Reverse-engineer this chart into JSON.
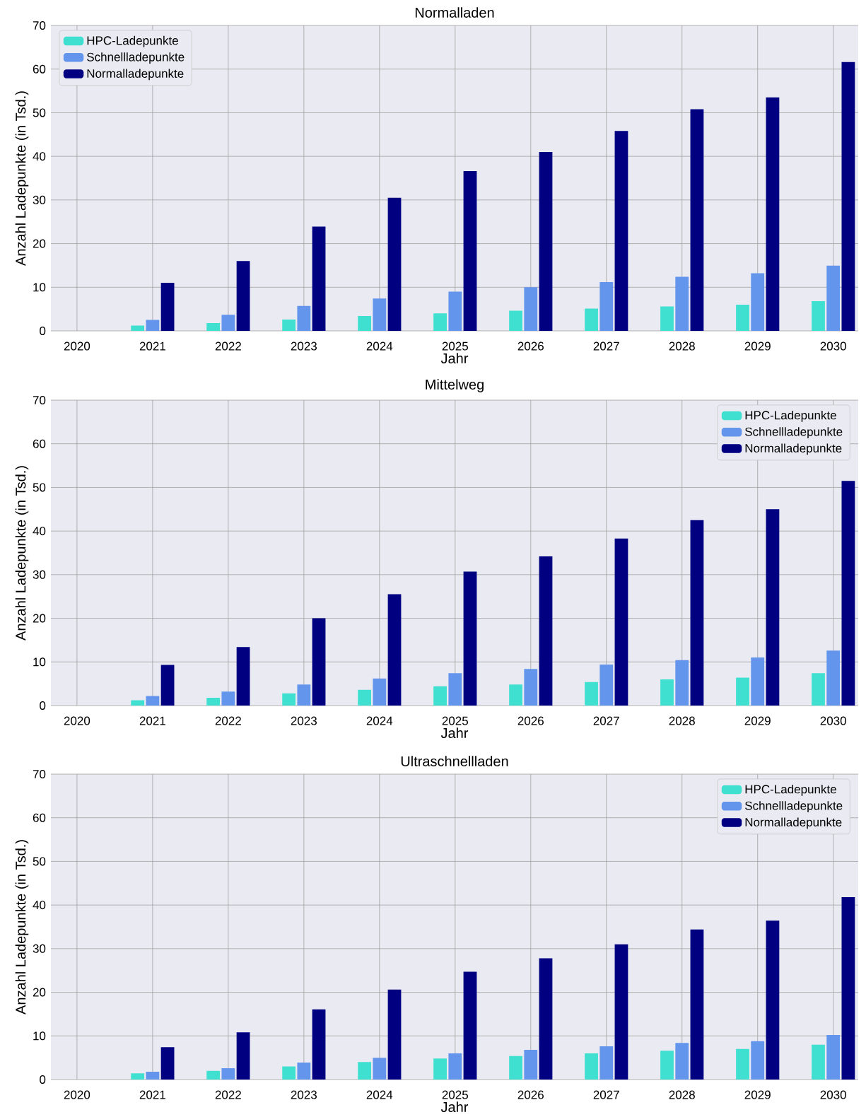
{
  "chart_data": [
    {
      "type": "bar",
      "title": "Normalladen",
      "xlabel": "Jahr",
      "ylabel": "Anzahl Ladepunkte (in Tsd.)",
      "categories": [
        "2020",
        "2021",
        "2022",
        "2023",
        "2024",
        "2025",
        "2026",
        "2027",
        "2028",
        "2029",
        "2030"
      ],
      "ylim": [
        0,
        70
      ],
      "yticks": [
        0,
        10,
        20,
        30,
        40,
        50,
        60,
        70
      ],
      "grid": true,
      "legend": "top left",
      "series": [
        {
          "name": "HPC-Ladepunkte",
          "color": "#40e0d0",
          "values": [
            0,
            1.2,
            1.8,
            2.6,
            3.4,
            4.0,
            4.6,
            5.1,
            5.6,
            6.0,
            6.8
          ]
        },
        {
          "name": "Schnellladepunkte",
          "color": "#6495ed",
          "values": [
            0,
            2.5,
            3.7,
            5.7,
            7.4,
            9.0,
            10.0,
            11.2,
            12.4,
            13.2,
            15.0
          ]
        },
        {
          "name": "Normalladepunkte",
          "color": "#000080",
          "values": [
            0,
            11.0,
            16.0,
            23.9,
            30.5,
            36.6,
            41.0,
            45.8,
            50.8,
            53.5,
            61.6
          ]
        }
      ]
    },
    {
      "type": "bar",
      "title": "Mittelweg",
      "xlabel": "Jahr",
      "ylabel": "Anzahl Ladepunkte (in Tsd.)",
      "categories": [
        "2020",
        "2021",
        "2022",
        "2023",
        "2024",
        "2025",
        "2026",
        "2027",
        "2028",
        "2029",
        "2030"
      ],
      "ylim": [
        0,
        70
      ],
      "yticks": [
        0,
        10,
        20,
        30,
        40,
        50,
        60,
        70
      ],
      "grid": true,
      "legend": "top right",
      "series": [
        {
          "name": "HPC-Ladepunkte",
          "color": "#40e0d0",
          "values": [
            0,
            1.2,
            1.8,
            2.8,
            3.6,
            4.4,
            4.8,
            5.4,
            6.0,
            6.4,
            7.4
          ]
        },
        {
          "name": "Schnellladepunkte",
          "color": "#6495ed",
          "values": [
            0,
            2.2,
            3.2,
            4.8,
            6.2,
            7.4,
            8.4,
            9.4,
            10.4,
            11.0,
            12.6
          ]
        },
        {
          "name": "Normalladepunkte",
          "color": "#000080",
          "values": [
            0,
            9.3,
            13.4,
            20.0,
            25.5,
            30.7,
            34.2,
            38.3,
            42.5,
            45.0,
            51.5
          ]
        }
      ]
    },
    {
      "type": "bar",
      "title": "Ultraschnellladen",
      "xlabel": "Jahr",
      "ylabel": "Anzahl Ladepunkte (in Tsd.)",
      "categories": [
        "2020",
        "2021",
        "2022",
        "2023",
        "2024",
        "2025",
        "2026",
        "2027",
        "2028",
        "2029",
        "2030"
      ],
      "ylim": [
        0,
        70
      ],
      "yticks": [
        0,
        10,
        20,
        30,
        40,
        50,
        60,
        70
      ],
      "grid": true,
      "legend": "top right",
      "series": [
        {
          "name": "HPC-Ladepunkte",
          "color": "#40e0d0",
          "values": [
            0,
            1.4,
            2.0,
            3.0,
            4.0,
            4.8,
            5.4,
            6.0,
            6.6,
            7.0,
            8.0
          ]
        },
        {
          "name": "Schnellladepunkte",
          "color": "#6495ed",
          "values": [
            0,
            1.8,
            2.6,
            3.9,
            5.0,
            6.0,
            6.8,
            7.6,
            8.4,
            8.8,
            10.2
          ]
        },
        {
          "name": "Normalladepunkte",
          "color": "#000080",
          "values": [
            0,
            7.4,
            10.8,
            16.1,
            20.6,
            24.7,
            27.8,
            31.0,
            34.4,
            36.4,
            41.8
          ]
        }
      ]
    }
  ]
}
